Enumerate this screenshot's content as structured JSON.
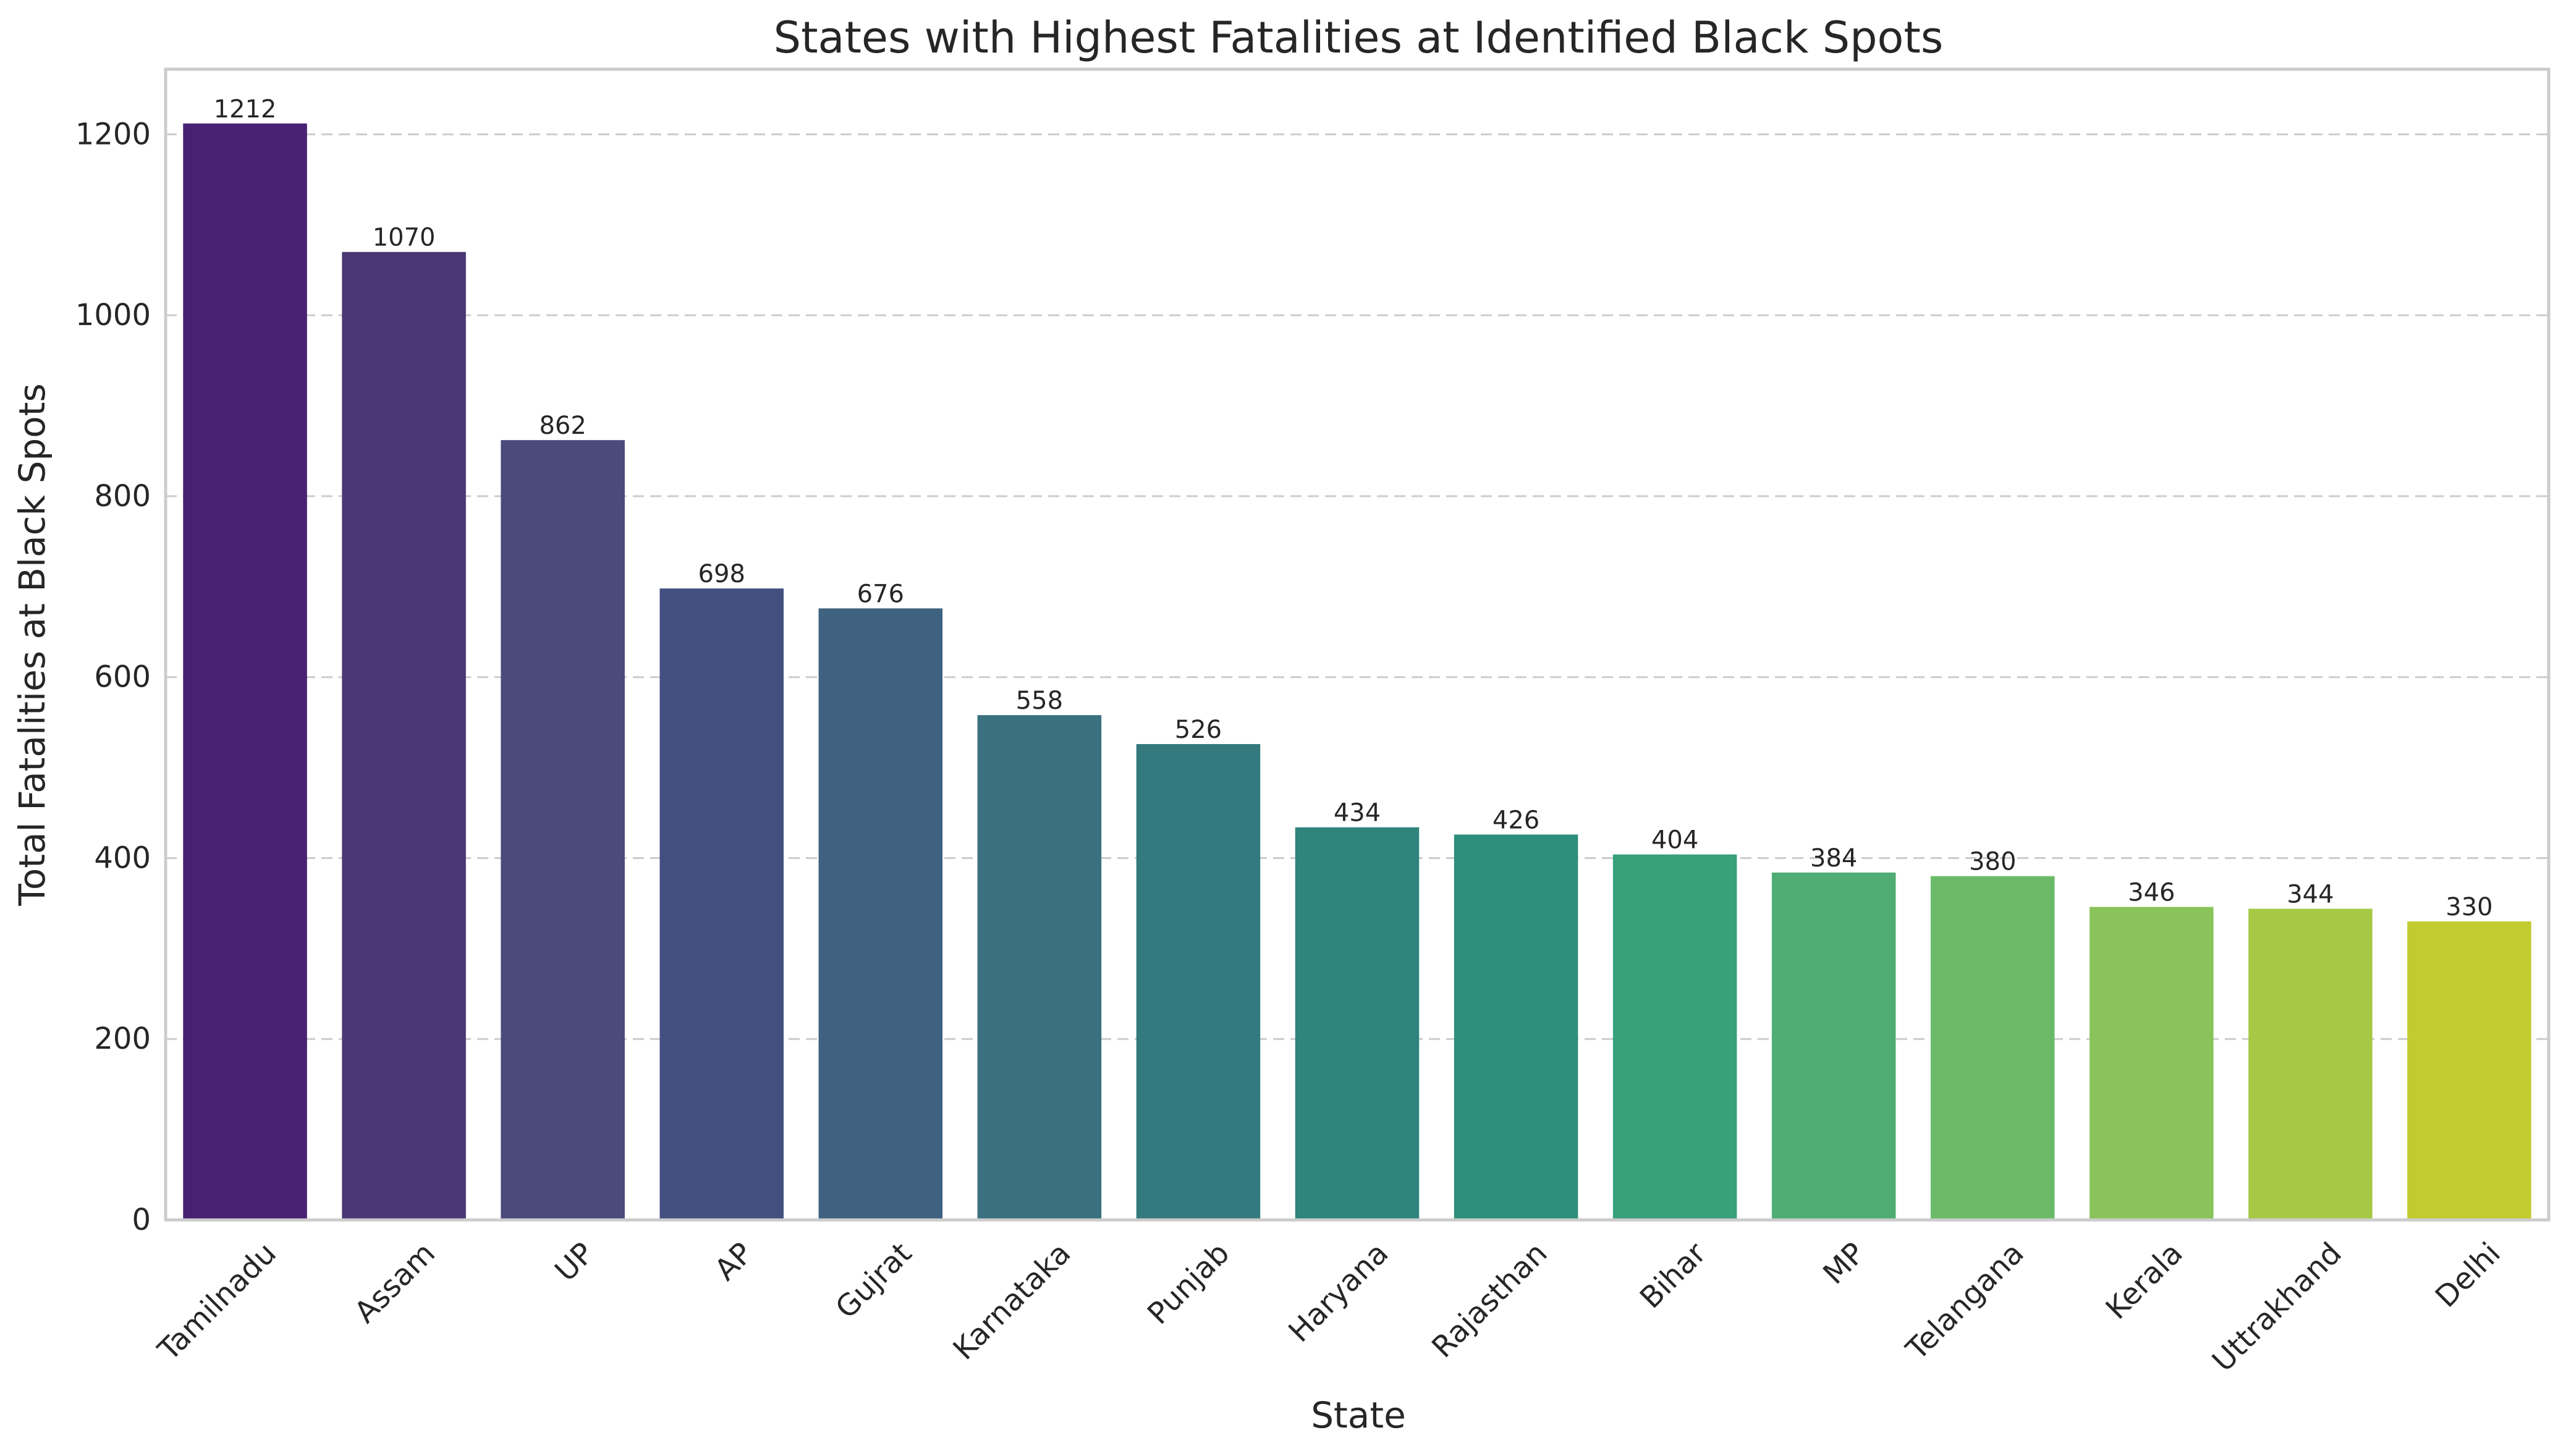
{
  "chart_data": {
    "type": "bar",
    "title": "States with Highest Fatalities at Identified Black Spots",
    "xlabel": "State",
    "ylabel": "Total Fatalities at Black Spots",
    "categories": [
      "Tamilnadu",
      "Assam",
      "UP",
      "AP",
      "Gujrat",
      "Karnataka",
      "Punjab",
      "Haryana",
      "Rajasthan",
      "Bihar",
      "MP",
      "Telangana",
      "Kerala",
      "Uttrakhand",
      "Delhi"
    ],
    "values": [
      1212,
      1070,
      862,
      698,
      676,
      558,
      526,
      434,
      426,
      404,
      384,
      380,
      346,
      344,
      330
    ],
    "data_labels": [
      "1212",
      "1070",
      "862",
      "698",
      "676",
      "558",
      "526",
      "434",
      "426",
      "404",
      "384",
      "380",
      "346",
      "344",
      "330"
    ],
    "colors": [
      "#482173",
      "#4b3773",
      "#4a4a7d",
      "#424f7f",
      "#3e627f",
      "#3a707f",
      "#34797d",
      "#2f847c",
      "#2d8e7b",
      "#38a07b",
      "#4fad73",
      "#6bba67",
      "#89c35a",
      "#a6c945",
      "#c2cc30"
    ],
    "y_ticks": [
      0,
      200,
      400,
      600,
      800,
      1000,
      1200
    ],
    "y_tick_labels": [
      "0",
      "200",
      "400",
      "600",
      "800",
      "1000",
      "1200"
    ],
    "ylim": [
      0,
      1272
    ],
    "grid": "y-dashed",
    "legend": "none"
  }
}
